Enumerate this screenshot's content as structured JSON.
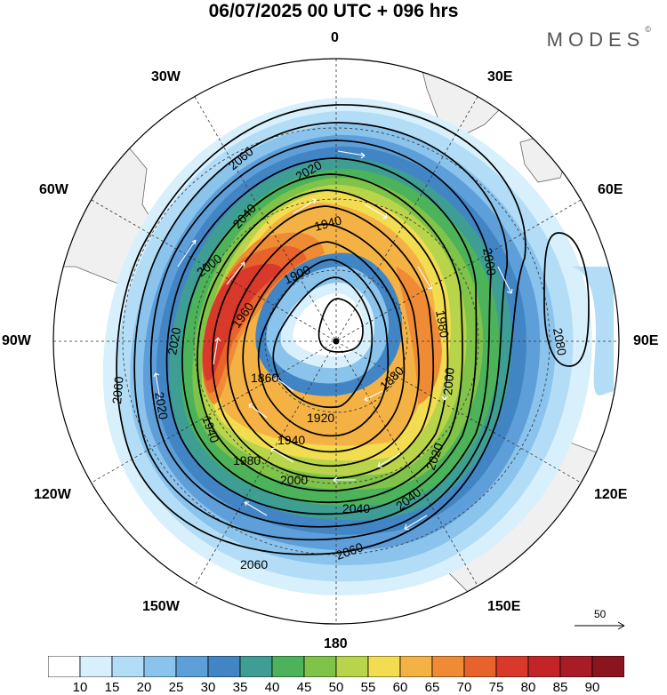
{
  "title": "06/07/2025  00 UTC  + 096 hrs",
  "brand": "MODES",
  "brand_mark": "©",
  "longitude_labels": {
    "top": "0",
    "30W": "30W",
    "30E": "30E",
    "60W": "60W",
    "60E": "60E",
    "90W": "90W",
    "90E": "90E",
    "120W": "120W",
    "120E": "120E",
    "150W": "150W",
    "150E": "150E",
    "bottom": "180"
  },
  "contour_labels": [
    "2060",
    "2040",
    "2020",
    "2000",
    "1980",
    "1960",
    "1940",
    "1920",
    "1900",
    "1880",
    "1860",
    "2080"
  ],
  "vector_reference": "50",
  "colorbar": {
    "colors": [
      "#ffffff",
      "#d8f0fc",
      "#b3ddf6",
      "#8ac3ec",
      "#5f9fd9",
      "#4285c4",
      "#3f9e94",
      "#4cb35a",
      "#7fc349",
      "#b7d44a",
      "#f2dc4f",
      "#f4b244",
      "#ef8b35",
      "#e8632c",
      "#d8392a",
      "#c32428",
      "#a81c25",
      "#8a151f"
    ],
    "labels": [
      "10",
      "15",
      "20",
      "25",
      "30",
      "35",
      "40",
      "45",
      "50",
      "55",
      "60",
      "65",
      "70",
      "75",
      "80",
      "85",
      "90"
    ]
  },
  "colors": {
    "land": "#f0f0f0",
    "contour": "#000000",
    "vector": "#ffffff"
  }
}
